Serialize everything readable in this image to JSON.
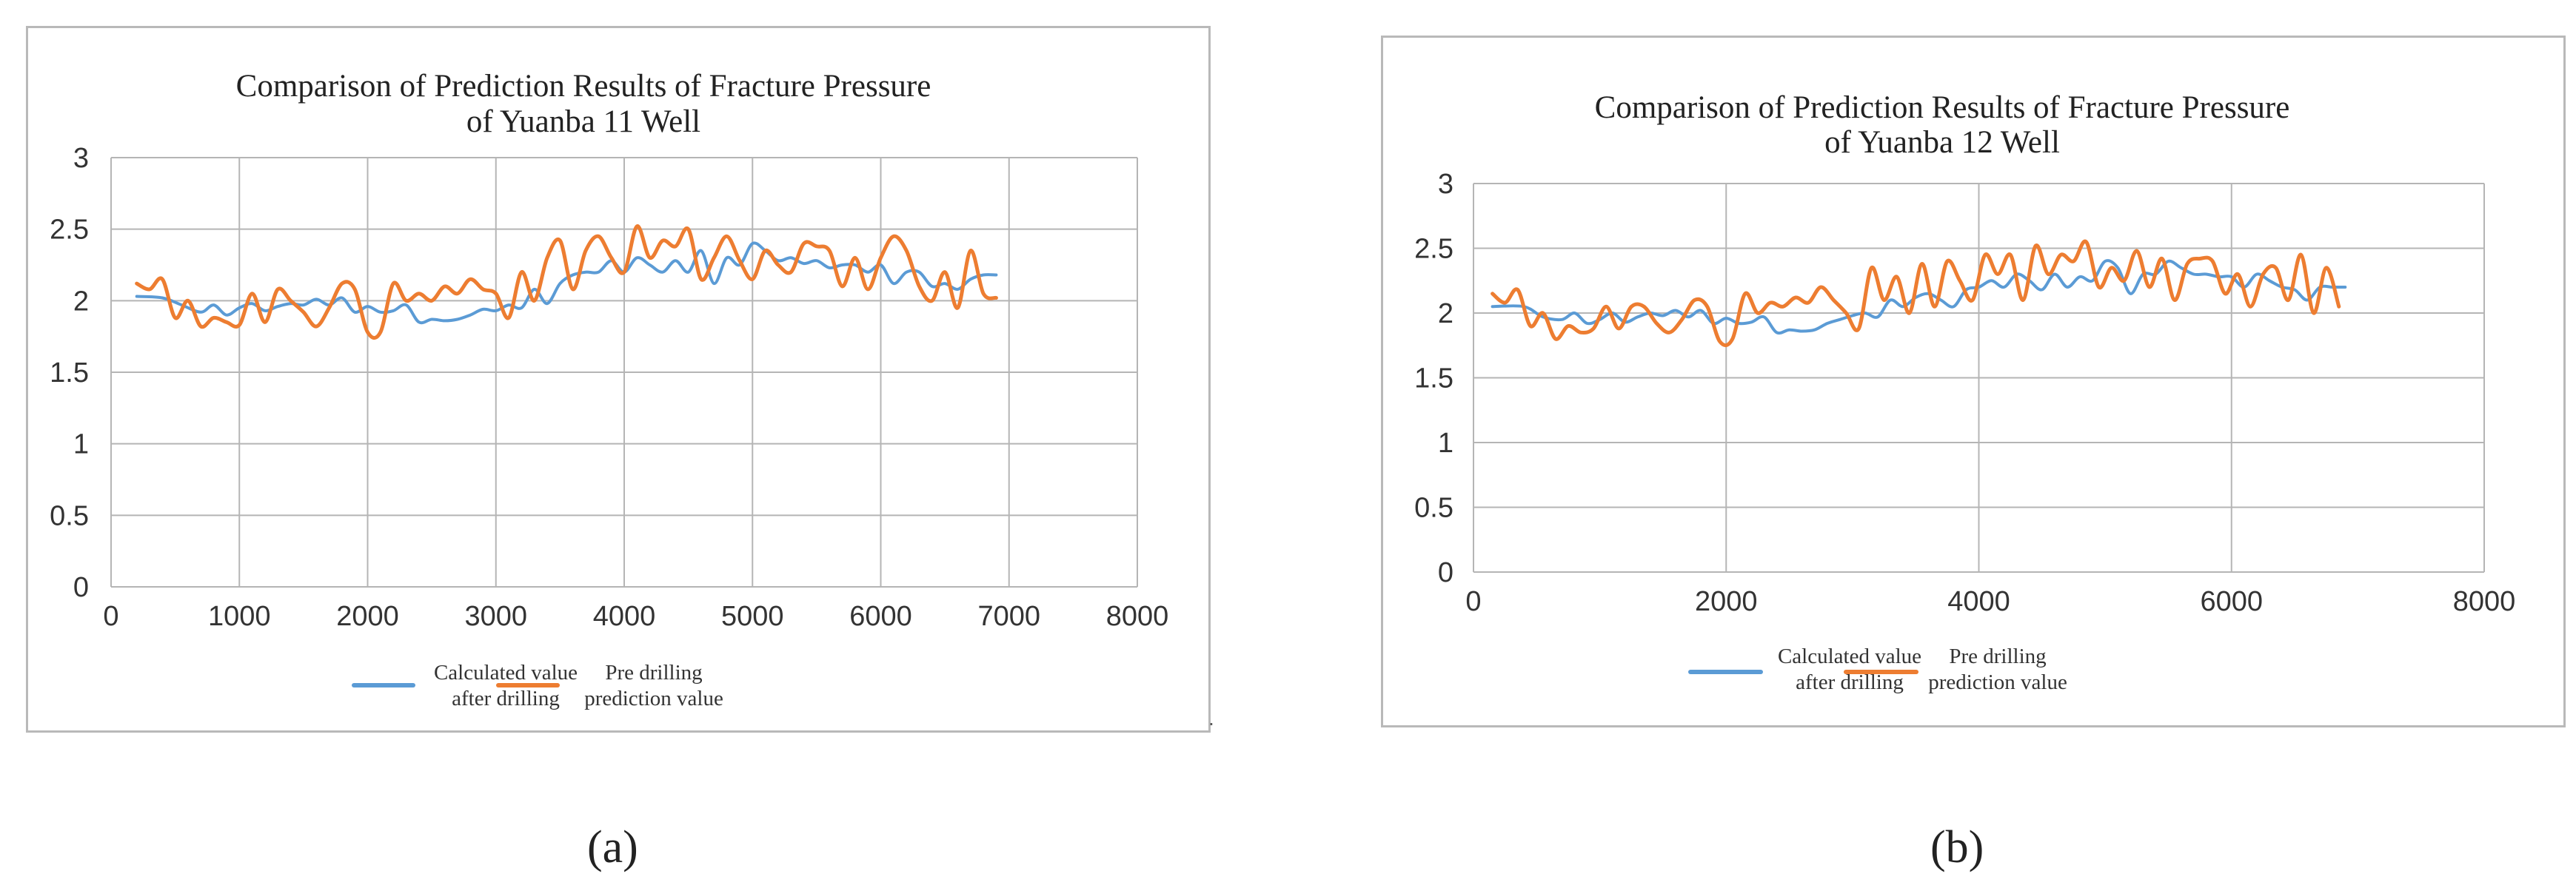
{
  "captions": [
    "(a)",
    "(b)"
  ],
  "stray_mark": ".",
  "chart_data": [
    {
      "id": "a",
      "type": "line",
      "title_lines": [
        "Comparison of Prediction Results of Fracture Pressure",
        "of Yuanba 11 Well"
      ],
      "xlabel": "",
      "ylabel": "",
      "xlim": [
        0,
        8000
      ],
      "ylim": [
        0,
        3
      ],
      "xticks": [
        "0",
        "1000",
        "2000",
        "3000",
        "4000",
        "5000",
        "6000",
        "7000",
        "8000"
      ],
      "yticks": [
        "0",
        "0.5",
        "1",
        "1.5",
        "2",
        "2.5",
        "3"
      ],
      "grid": true,
      "legend_position": "bottom",
      "colors": {
        "calculated": "#5b9bd5",
        "predicted": "#ed7d31"
      },
      "series": [
        {
          "name": "Calculated value after drilling",
          "legend_lines": [
            "Calculated value",
            "after drilling"
          ],
          "x": [
            200,
            400,
            550,
            700,
            800,
            900,
            1000,
            1100,
            1200,
            1300,
            1400,
            1500,
            1600,
            1700,
            1800,
            1900,
            2000,
            2100,
            2200,
            2300,
            2400,
            2500,
            2600,
            2700,
            2800,
            2900,
            3000,
            3100,
            3200,
            3300,
            3400,
            3500,
            3600,
            3700,
            3800,
            3900,
            4000,
            4100,
            4200,
            4300,
            4400,
            4500,
            4600,
            4700,
            4800,
            4900,
            5000,
            5100,
            5200,
            5300,
            5400,
            5500,
            5600,
            5700,
            5800,
            5900,
            6000,
            6100,
            6200,
            6300,
            6400,
            6500,
            6600,
            6700,
            6800,
            6900
          ],
          "y": [
            2.03,
            2.02,
            1.97,
            1.92,
            1.97,
            1.9,
            1.95,
            1.98,
            1.93,
            1.96,
            1.98,
            1.97,
            2.01,
            1.97,
            2.02,
            1.92,
            1.96,
            1.92,
            1.93,
            1.97,
            1.85,
            1.87,
            1.86,
            1.87,
            1.9,
            1.94,
            1.93,
            1.97,
            1.95,
            2.08,
            1.98,
            2.12,
            2.18,
            2.2,
            2.2,
            2.28,
            2.2,
            2.3,
            2.25,
            2.2,
            2.28,
            2.2,
            2.35,
            2.12,
            2.3,
            2.25,
            2.4,
            2.35,
            2.28,
            2.3,
            2.26,
            2.28,
            2.23,
            2.25,
            2.25,
            2.2,
            2.25,
            2.12,
            2.2,
            2.2,
            2.1,
            2.12,
            2.08,
            2.15,
            2.18,
            2.18
          ]
        },
        {
          "name": "Pre drilling prediction value",
          "legend_lines": [
            "Pre drilling",
            "prediction value"
          ],
          "x": [
            200,
            300,
            400,
            500,
            600,
            700,
            800,
            900,
            1000,
            1100,
            1200,
            1300,
            1400,
            1500,
            1600,
            1700,
            1800,
            1900,
            2000,
            2100,
            2200,
            2300,
            2400,
            2500,
            2600,
            2700,
            2800,
            2900,
            3000,
            3100,
            3200,
            3300,
            3400,
            3500,
            3600,
            3700,
            3800,
            3900,
            4000,
            4100,
            4200,
            4300,
            4400,
            4500,
            4600,
            4700,
            4800,
            4900,
            5000,
            5100,
            5200,
            5300,
            5400,
            5500,
            5600,
            5700,
            5800,
            5900,
            6000,
            6100,
            6200,
            6300,
            6400,
            6500,
            6600,
            6700,
            6800,
            6900
          ],
          "y": [
            2.12,
            2.08,
            2.15,
            1.88,
            2.0,
            1.82,
            1.88,
            1.85,
            1.83,
            2.05,
            1.85,
            2.08,
            2.0,
            1.92,
            1.82,
            1.95,
            2.12,
            2.08,
            1.78,
            1.78,
            2.12,
            2.0,
            2.05,
            2.0,
            2.1,
            2.05,
            2.15,
            2.08,
            2.05,
            1.88,
            2.2,
            2.0,
            2.3,
            2.42,
            2.08,
            2.35,
            2.45,
            2.3,
            2.2,
            2.52,
            2.3,
            2.42,
            2.38,
            2.5,
            2.15,
            2.3,
            2.45,
            2.28,
            2.15,
            2.35,
            2.25,
            2.2,
            2.4,
            2.38,
            2.35,
            2.1,
            2.3,
            2.08,
            2.3,
            2.45,
            2.35,
            2.1,
            2.0,
            2.2,
            1.95,
            2.35,
            2.05,
            2.02
          ]
        }
      ]
    },
    {
      "id": "b",
      "type": "line",
      "title_lines": [
        "Comparison of Prediction Results of Fracture Pressure",
        "of Yuanba 12 Well"
      ],
      "xlabel": "",
      "ylabel": "",
      "xlim": [
        0,
        8000
      ],
      "ylim": [
        0,
        3
      ],
      "xticks": [
        "0",
        "2000",
        "4000",
        "6000",
        "8000"
      ],
      "yticks": [
        "0",
        "0.5",
        "1",
        "1.5",
        "2",
        "2.5",
        "3"
      ],
      "grid": true,
      "legend_position": "bottom",
      "colors": {
        "calculated": "#5b9bd5",
        "predicted": "#ed7d31"
      },
      "series": [
        {
          "name": "Calculated value after drilling",
          "legend_lines": [
            "Calculated value",
            "after drilling"
          ],
          "x": [
            150,
            400,
            550,
            700,
            800,
            900,
            1000,
            1100,
            1200,
            1300,
            1400,
            1500,
            1600,
            1700,
            1800,
            1900,
            2000,
            2100,
            2200,
            2300,
            2400,
            2500,
            2600,
            2700,
            2800,
            2900,
            3000,
            3100,
            3200,
            3300,
            3400,
            3500,
            3600,
            3700,
            3800,
            3900,
            4000,
            4100,
            4200,
            4300,
            4400,
            4500,
            4600,
            4700,
            4800,
            4900,
            5000,
            5100,
            5200,
            5300,
            5400,
            5500,
            5600,
            5700,
            5800,
            5900,
            6000,
            6100,
            6200,
            6300,
            6400,
            6500,
            6600,
            6700,
            6800,
            6900
          ],
          "y": [
            2.05,
            2.05,
            1.97,
            1.95,
            2.0,
            1.92,
            1.95,
            2.0,
            1.93,
            1.97,
            2.0,
            1.98,
            2.02,
            1.97,
            2.02,
            1.92,
            1.96,
            1.92,
            1.93,
            1.97,
            1.85,
            1.87,
            1.86,
            1.87,
            1.92,
            1.95,
            1.98,
            2.0,
            1.97,
            2.1,
            2.05,
            2.12,
            2.15,
            2.1,
            2.05,
            2.18,
            2.2,
            2.25,
            2.2,
            2.3,
            2.25,
            2.18,
            2.3,
            2.2,
            2.28,
            2.25,
            2.4,
            2.35,
            2.15,
            2.3,
            2.3,
            2.4,
            2.35,
            2.3,
            2.3,
            2.28,
            2.28,
            2.2,
            2.3,
            2.25,
            2.2,
            2.18,
            2.1,
            2.2,
            2.2,
            2.2
          ]
        },
        {
          "name": "Pre drilling prediction value",
          "legend_lines": [
            "Pre drilling",
            "prediction value"
          ],
          "x": [
            150,
            250,
            350,
            450,
            550,
            650,
            750,
            850,
            950,
            1050,
            1150,
            1250,
            1350,
            1450,
            1550,
            1650,
            1750,
            1850,
            1950,
            2050,
            2150,
            2250,
            2350,
            2450,
            2550,
            2650,
            2750,
            2850,
            2950,
            3050,
            3150,
            3250,
            3350,
            3450,
            3550,
            3650,
            3750,
            3850,
            3950,
            4050,
            4150,
            4250,
            4350,
            4450,
            4550,
            4650,
            4750,
            4850,
            4950,
            5050,
            5150,
            5250,
            5350,
            5450,
            5550,
            5650,
            5750,
            5850,
            5950,
            6050,
            6150,
            6250,
            6350,
            6450,
            6550,
            6650,
            6750,
            6850
          ],
          "y": [
            2.15,
            2.08,
            2.18,
            1.9,
            2.0,
            1.8,
            1.9,
            1.85,
            1.88,
            2.05,
            1.88,
            2.05,
            2.05,
            1.92,
            1.85,
            1.95,
            2.1,
            2.05,
            1.78,
            1.8,
            2.15,
            2.0,
            2.08,
            2.05,
            2.12,
            2.08,
            2.2,
            2.1,
            2.0,
            1.88,
            2.35,
            2.1,
            2.28,
            2.0,
            2.38,
            2.05,
            2.4,
            2.25,
            2.1,
            2.45,
            2.3,
            2.45,
            2.1,
            2.52,
            2.3,
            2.45,
            2.4,
            2.55,
            2.2,
            2.35,
            2.25,
            2.48,
            2.2,
            2.42,
            2.1,
            2.38,
            2.42,
            2.4,
            2.15,
            2.3,
            2.05,
            2.3,
            2.35,
            2.1,
            2.45,
            2.0,
            2.35,
            2.05
          ]
        }
      ]
    }
  ]
}
